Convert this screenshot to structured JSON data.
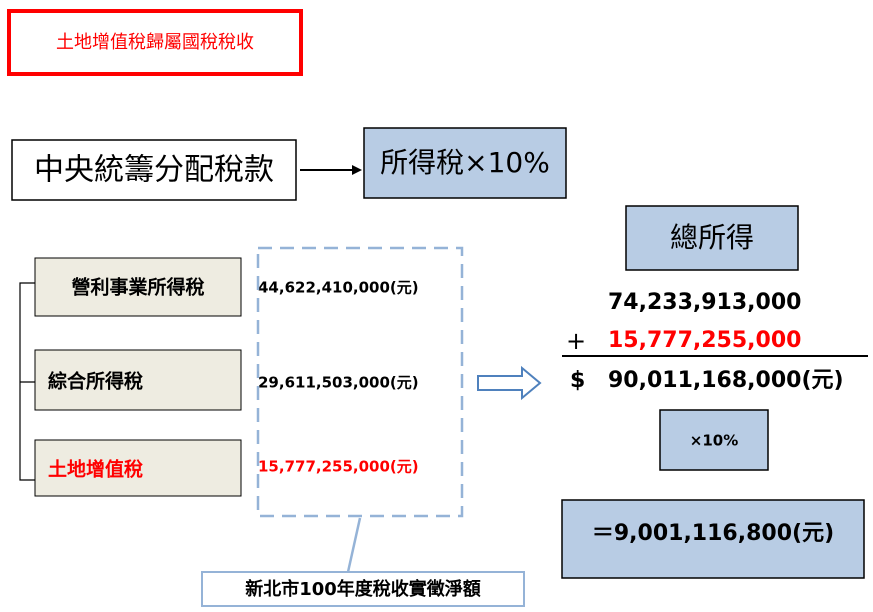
{
  "header": {
    "title": "土地增值稅歸屬國稅稅收"
  },
  "top": {
    "source": "中央統籌分配稅款",
    "target": "所得稅×10%"
  },
  "taxes": [
    {
      "label": "營利事業所得稅",
      "amount": "44,622,410,000(元)"
    },
    {
      "label": "綜合所得稅",
      "amount": "29,611,503,000(元)"
    },
    {
      "label": "土地增值稅",
      "amount": "15,777,255,000(元)"
    }
  ],
  "group_label": "新北市100年度稅收實徵淨額",
  "calc": {
    "title": "總所得",
    "line1": "74,233,913,000",
    "plus": "+",
    "line2": "15,777,255,000",
    "currency": "$",
    "total": "90,011,168,000(元)",
    "rate": "×10%",
    "result": "＝9,001,116,800(元)"
  }
}
